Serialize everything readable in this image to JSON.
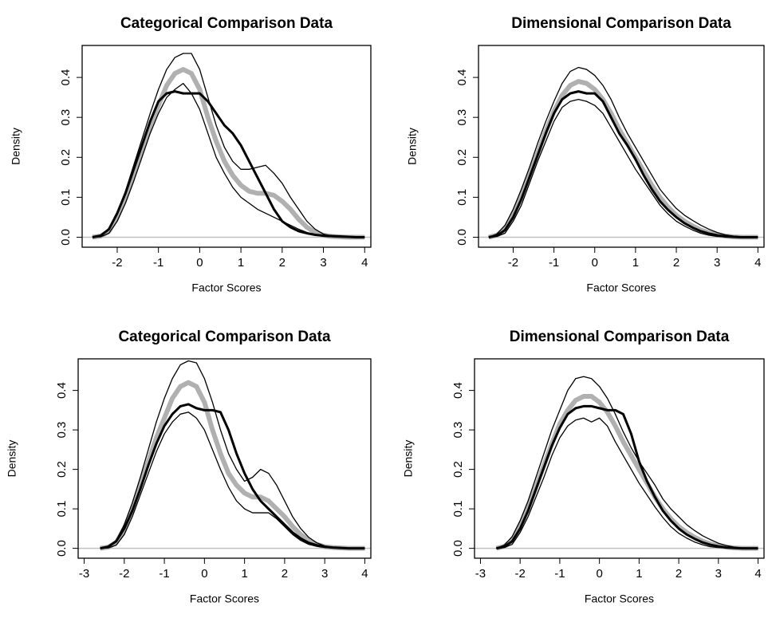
{
  "chart_data": [
    {
      "type": "line",
      "title": "Categorical Comparison Data",
      "x_label": "Factor Scores",
      "y_label": "Density",
      "xlim": [
        -2.85,
        4.15
      ],
      "ylim": [
        -0.025,
        0.48
      ],
      "xticks": [
        -2,
        -1,
        0,
        1,
        2,
        3,
        4
      ],
      "yticks": [
        {
          "value": 0,
          "label": "0.0"
        },
        0.1,
        0.2,
        0.3,
        0.4
      ],
      "hline": 0,
      "hline_color": "#c0c0c0",
      "x": [
        -2.6,
        -2.4,
        -2.2,
        -2.0,
        -1.8,
        -1.6,
        -1.4,
        -1.2,
        -1.0,
        -0.8,
        -0.6,
        -0.4,
        -0.2,
        0,
        0.2,
        0.4,
        0.6,
        0.8,
        1.0,
        1.2,
        1.4,
        1.6,
        1.8,
        2.0,
        2.2,
        2.4,
        2.6,
        2.8,
        3.0,
        3.2,
        3.4,
        3.6,
        3.8,
        4.0
      ],
      "series": [
        {
          "color": "#b0b0b0",
          "width": 6,
          "values": [
            0,
            0.003,
            0.015,
            0.05,
            0.1,
            0.16,
            0.22,
            0.28,
            0.33,
            0.38,
            0.41,
            0.42,
            0.41,
            0.37,
            0.3,
            0.24,
            0.19,
            0.155,
            0.13,
            0.115,
            0.11,
            0.11,
            0.105,
            0.09,
            0.07,
            0.045,
            0.025,
            0.012,
            0.005,
            0.002,
            0.001,
            0,
            0,
            0
          ]
        },
        {
          "color": "#000000",
          "width": 1.3,
          "values": [
            0,
            0.005,
            0.02,
            0.06,
            0.115,
            0.18,
            0.245,
            0.31,
            0.37,
            0.42,
            0.45,
            0.46,
            0.46,
            0.42,
            0.35,
            0.28,
            0.225,
            0.19,
            0.17,
            0.17,
            0.175,
            0.18,
            0.16,
            0.135,
            0.1,
            0.07,
            0.04,
            0.02,
            0.008,
            0.003,
            0.001,
            0,
            0,
            0
          ]
        },
        {
          "color": "#000000",
          "width": 1.3,
          "values": [
            0,
            0.001,
            0.01,
            0.04,
            0.085,
            0.14,
            0.2,
            0.26,
            0.31,
            0.35,
            0.37,
            0.385,
            0.36,
            0.32,
            0.26,
            0.2,
            0.16,
            0.125,
            0.1,
            0.085,
            0.07,
            0.06,
            0.05,
            0.04,
            0.03,
            0.02,
            0.012,
            0.006,
            0.002,
            0.001,
            0,
            0,
            0,
            0
          ]
        },
        {
          "color": "#000000",
          "width": 3,
          "values": [
            0,
            0.004,
            0.02,
            0.06,
            0.11,
            0.17,
            0.23,
            0.29,
            0.34,
            0.36,
            0.365,
            0.36,
            0.36,
            0.36,
            0.34,
            0.31,
            0.28,
            0.26,
            0.23,
            0.19,
            0.15,
            0.11,
            0.07,
            0.04,
            0.025,
            0.015,
            0.01,
            0.006,
            0.004,
            0.003,
            0.002,
            0.001,
            0,
            0
          ]
        }
      ]
    },
    {
      "type": "line",
      "title": "Dimensional Comparison Data",
      "x_label": "Factor Scores",
      "y_label": "Density",
      "xlim": [
        -2.85,
        4.15
      ],
      "ylim": [
        -0.025,
        0.48
      ],
      "xticks": [
        -2,
        -1,
        0,
        1,
        2,
        3,
        4
      ],
      "yticks": [
        {
          "value": 0,
          "label": "0.0"
        },
        0.1,
        0.2,
        0.3,
        0.4
      ],
      "hline": 0,
      "hline_color": "#c0c0c0",
      "x": [
        -2.6,
        -2.4,
        -2.2,
        -2.0,
        -1.8,
        -1.6,
        -1.4,
        -1.2,
        -1.0,
        -0.8,
        -0.6,
        -0.4,
        -0.2,
        0,
        0.2,
        0.4,
        0.6,
        0.8,
        1.0,
        1.2,
        1.4,
        1.6,
        1.8,
        2.0,
        2.2,
        2.4,
        2.6,
        2.8,
        3.0,
        3.2,
        3.4,
        3.6,
        3.8,
        4.0
      ],
      "series": [
        {
          "color": "#b0b0b0",
          "width": 6,
          "values": [
            0,
            0.005,
            0.02,
            0.055,
            0.1,
            0.155,
            0.21,
            0.265,
            0.315,
            0.355,
            0.38,
            0.39,
            0.385,
            0.37,
            0.345,
            0.31,
            0.27,
            0.235,
            0.2,
            0.165,
            0.13,
            0.1,
            0.075,
            0.055,
            0.04,
            0.028,
            0.018,
            0.011,
            0.006,
            0.003,
            0.001,
            0,
            0,
            0
          ]
        },
        {
          "color": "#000000",
          "width": 1.3,
          "values": [
            0,
            0.008,
            0.03,
            0.07,
            0.12,
            0.175,
            0.235,
            0.29,
            0.34,
            0.385,
            0.415,
            0.425,
            0.42,
            0.405,
            0.38,
            0.345,
            0.3,
            0.26,
            0.225,
            0.19,
            0.155,
            0.12,
            0.095,
            0.072,
            0.055,
            0.042,
            0.03,
            0.02,
            0.012,
            0.006,
            0.003,
            0.001,
            0,
            0
          ]
        },
        {
          "color": "#000000",
          "width": 1.3,
          "values": [
            0,
            0.002,
            0.01,
            0.04,
            0.08,
            0.135,
            0.19,
            0.24,
            0.29,
            0.325,
            0.34,
            0.345,
            0.34,
            0.33,
            0.31,
            0.275,
            0.24,
            0.205,
            0.17,
            0.14,
            0.11,
            0.08,
            0.058,
            0.04,
            0.028,
            0.018,
            0.01,
            0.005,
            0.002,
            0.001,
            0,
            0,
            0,
            0
          ]
        },
        {
          "color": "#000000",
          "width": 3,
          "values": [
            0,
            0.004,
            0.018,
            0.05,
            0.095,
            0.15,
            0.205,
            0.26,
            0.31,
            0.345,
            0.36,
            0.365,
            0.36,
            0.36,
            0.34,
            0.3,
            0.26,
            0.23,
            0.195,
            0.155,
            0.12,
            0.09,
            0.068,
            0.05,
            0.035,
            0.024,
            0.015,
            0.009,
            0.005,
            0.002,
            0.001,
            0,
            0,
            0
          ]
        }
      ]
    },
    {
      "type": "line",
      "title": "Categorical Comparison Data",
      "x_label": "Factor Scores",
      "y_label": "Density",
      "xlim": [
        -3.15,
        4.15
      ],
      "ylim": [
        -0.025,
        0.48
      ],
      "xticks": [
        -3,
        -2,
        -1,
        0,
        1,
        2,
        3,
        4
      ],
      "yticks": [
        {
          "value": 0,
          "label": "0.0"
        },
        0.1,
        0.2,
        0.3,
        0.4
      ],
      "hline": 0,
      "hline_color": "#c0c0c0",
      "x": [
        -2.6,
        -2.4,
        -2.2,
        -2.0,
        -1.8,
        -1.6,
        -1.4,
        -1.2,
        -1.0,
        -0.8,
        -0.6,
        -0.4,
        -0.2,
        0,
        0.2,
        0.4,
        0.6,
        0.8,
        1.0,
        1.2,
        1.4,
        1.6,
        1.8,
        2.0,
        2.2,
        2.4,
        2.6,
        2.8,
        3.0,
        3.2,
        3.4,
        3.6,
        3.8,
        4.0
      ],
      "series": [
        {
          "color": "#b0b0b0",
          "width": 6,
          "values": [
            0,
            0.003,
            0.015,
            0.05,
            0.1,
            0.16,
            0.22,
            0.28,
            0.33,
            0.38,
            0.41,
            0.42,
            0.41,
            0.37,
            0.3,
            0.24,
            0.19,
            0.16,
            0.14,
            0.13,
            0.13,
            0.12,
            0.1,
            0.08,
            0.055,
            0.035,
            0.02,
            0.01,
            0.004,
            0.002,
            0.001,
            0,
            0,
            0
          ]
        },
        {
          "color": "#000000",
          "width": 1.3,
          "values": [
            0,
            0.005,
            0.02,
            0.06,
            0.115,
            0.18,
            0.25,
            0.32,
            0.38,
            0.43,
            0.465,
            0.475,
            0.47,
            0.43,
            0.37,
            0.3,
            0.24,
            0.2,
            0.17,
            0.18,
            0.2,
            0.19,
            0.16,
            0.12,
            0.08,
            0.05,
            0.028,
            0.014,
            0.006,
            0.002,
            0.001,
            0,
            0,
            0
          ]
        },
        {
          "color": "#000000",
          "width": 1.3,
          "values": [
            0,
            0.001,
            0.008,
            0.035,
            0.08,
            0.135,
            0.19,
            0.245,
            0.29,
            0.32,
            0.34,
            0.345,
            0.33,
            0.3,
            0.25,
            0.2,
            0.155,
            0.12,
            0.1,
            0.09,
            0.09,
            0.09,
            0.075,
            0.055,
            0.035,
            0.02,
            0.01,
            0.005,
            0.002,
            0.001,
            0,
            0,
            0,
            0
          ]
        },
        {
          "color": "#000000",
          "width": 3,
          "values": [
            0,
            0.004,
            0.018,
            0.05,
            0.095,
            0.15,
            0.21,
            0.265,
            0.31,
            0.34,
            0.36,
            0.365,
            0.355,
            0.35,
            0.35,
            0.345,
            0.3,
            0.24,
            0.19,
            0.15,
            0.12,
            0.1,
            0.08,
            0.06,
            0.04,
            0.025,
            0.014,
            0.008,
            0.004,
            0.002,
            0.001,
            0,
            0,
            0
          ]
        }
      ]
    },
    {
      "type": "line",
      "title": "Dimensional Comparison Data",
      "x_label": "Factor Scores",
      "y_label": "Density",
      "xlim": [
        -3.15,
        4.15
      ],
      "ylim": [
        -0.025,
        0.48
      ],
      "xticks": [
        -3,
        -2,
        -1,
        0,
        1,
        2,
        3,
        4
      ],
      "yticks": [
        {
          "value": 0,
          "label": "0.0"
        },
        0.1,
        0.2,
        0.3,
        0.4
      ],
      "hline": 0,
      "hline_color": "#c0c0c0",
      "x": [
        -2.6,
        -2.4,
        -2.2,
        -2.0,
        -1.8,
        -1.6,
        -1.4,
        -1.2,
        -1.0,
        -0.8,
        -0.6,
        -0.4,
        -0.2,
        0,
        0.2,
        0.4,
        0.6,
        0.8,
        1.0,
        1.2,
        1.4,
        1.6,
        1.8,
        2.0,
        2.2,
        2.4,
        2.6,
        2.8,
        3.0,
        3.2,
        3.4,
        3.6,
        3.8,
        4.0
      ],
      "series": [
        {
          "color": "#b0b0b0",
          "width": 6,
          "values": [
            0,
            0.005,
            0.02,
            0.055,
            0.1,
            0.155,
            0.21,
            0.265,
            0.315,
            0.35,
            0.375,
            0.385,
            0.385,
            0.37,
            0.345,
            0.31,
            0.27,
            0.235,
            0.2,
            0.165,
            0.13,
            0.1,
            0.075,
            0.055,
            0.04,
            0.028,
            0.018,
            0.011,
            0.006,
            0.003,
            0.001,
            0,
            0,
            0
          ]
        },
        {
          "color": "#000000",
          "width": 1.3,
          "values": [
            0,
            0.008,
            0.03,
            0.07,
            0.12,
            0.18,
            0.24,
            0.3,
            0.35,
            0.4,
            0.43,
            0.435,
            0.43,
            0.41,
            0.38,
            0.34,
            0.295,
            0.255,
            0.22,
            0.19,
            0.16,
            0.125,
            0.1,
            0.08,
            0.06,
            0.045,
            0.032,
            0.022,
            0.013,
            0.007,
            0.003,
            0.001,
            0,
            0
          ]
        },
        {
          "color": "#000000",
          "width": 1.3,
          "values": [
            0,
            0.002,
            0.01,
            0.04,
            0.08,
            0.13,
            0.18,
            0.235,
            0.28,
            0.31,
            0.325,
            0.33,
            0.32,
            0.33,
            0.31,
            0.27,
            0.235,
            0.2,
            0.165,
            0.135,
            0.105,
            0.078,
            0.055,
            0.038,
            0.026,
            0.016,
            0.009,
            0.004,
            0.002,
            0.001,
            0,
            0,
            0,
            0
          ]
        },
        {
          "color": "#000000",
          "width": 3,
          "values": [
            0,
            0.004,
            0.018,
            0.05,
            0.095,
            0.15,
            0.205,
            0.26,
            0.305,
            0.34,
            0.355,
            0.36,
            0.36,
            0.355,
            0.35,
            0.35,
            0.34,
            0.29,
            0.22,
            0.17,
            0.13,
            0.095,
            0.07,
            0.05,
            0.035,
            0.024,
            0.015,
            0.009,
            0.005,
            0.002,
            0.001,
            0,
            0,
            0
          ]
        }
      ]
    }
  ]
}
